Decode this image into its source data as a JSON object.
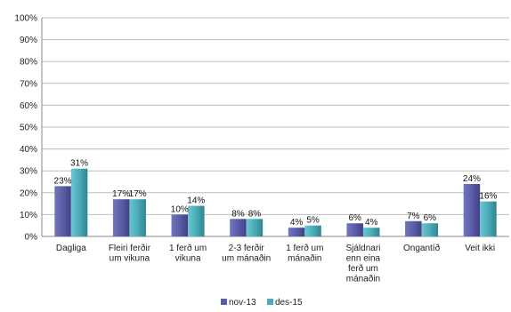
{
  "chart_data": {
    "type": "bar",
    "categories": [
      [
        "Dagliga"
      ],
      [
        "Fleiri ferðir",
        "um vikuna"
      ],
      [
        "1 ferð um",
        "vikuna"
      ],
      [
        "2-3 ferðir",
        "um mánaðin"
      ],
      [
        "1 ferð um",
        "mánaðin"
      ],
      [
        "Sjáldnari",
        "enn eina",
        "ferð um",
        "mánaðin"
      ],
      [
        "Ongantíð"
      ],
      [
        "Veit ikki"
      ]
    ],
    "series": [
      {
        "name": "nov-13",
        "values": [
          23,
          17,
          10,
          8,
          4,
          6,
          7,
          24
        ],
        "labels": [
          "23%",
          "17%",
          "10%",
          "8%",
          "4%",
          "6%",
          "7%",
          "24%"
        ],
        "color": "#5b5ea6"
      },
      {
        "name": "des-15",
        "values": [
          31,
          17,
          14,
          8,
          5,
          4,
          6,
          16
        ],
        "labels": [
          "31%",
          "17%",
          "14%",
          "8%",
          "5%",
          "4%",
          "6%",
          "16%"
        ],
        "color": "#4bacb8"
      }
    ],
    "ylim": [
      0,
      100
    ],
    "yticks": [
      "0%",
      "10%",
      "20%",
      "30%",
      "40%",
      "50%",
      "60%",
      "70%",
      "80%",
      "90%",
      "100%"
    ],
    "grid": true,
    "legend": "bottom"
  }
}
